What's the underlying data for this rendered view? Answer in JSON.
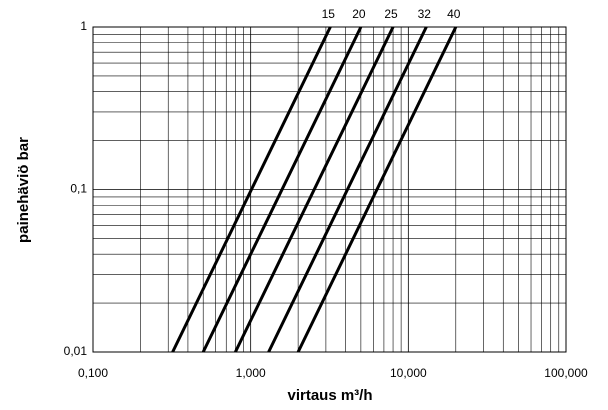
{
  "chart_data": {
    "type": "line",
    "log_x": true,
    "log_y": true,
    "grid": true,
    "xlabel": "virtaus m³/h",
    "ylabel": "painehäviö bar",
    "xlim": [
      0.1,
      100
    ],
    "ylim": [
      0.01,
      1
    ],
    "xticks": [
      {
        "value": 0.1,
        "label": "0,100"
      },
      {
        "value": 1,
        "label": "1,000"
      },
      {
        "value": 10,
        "label": "10,000"
      },
      {
        "value": 100,
        "label": "100,000"
      }
    ],
    "yticks": [
      {
        "value": 0.01,
        "label": "0,01"
      },
      {
        "value": 0.1,
        "label": "0,1"
      },
      1
    ],
    "series": [
      {
        "name": "15",
        "color": "#000000",
        "x": [
          0.32,
          3.2
        ],
        "values": [
          0.01,
          1
        ]
      },
      {
        "name": "20",
        "color": "#000000",
        "x": [
          0.5,
          5
        ],
        "values": [
          0.01,
          1
        ]
      },
      {
        "name": "25",
        "color": "#000000",
        "x": [
          0.8,
          8
        ],
        "values": [
          0.01,
          1
        ]
      },
      {
        "name": "32",
        "color": "#000000",
        "x": [
          1.3,
          13
        ],
        "values": [
          0.01,
          1
        ]
      },
      {
        "name": "40",
        "color": "#000000",
        "x": [
          2,
          20
        ],
        "values": [
          0.01,
          1
        ]
      }
    ]
  }
}
